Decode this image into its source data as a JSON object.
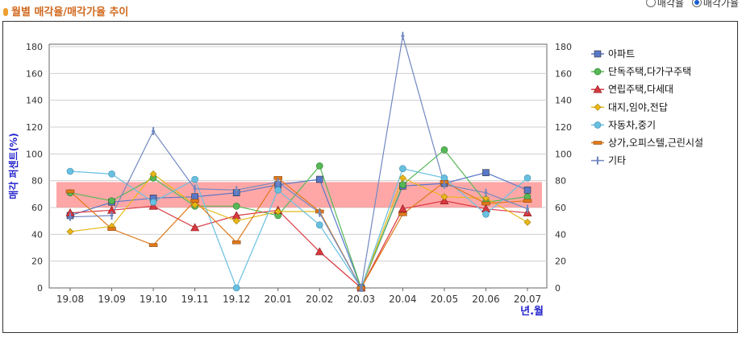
{
  "header": {
    "title": "월별 매각율/매각가율 추이"
  },
  "toggle": {
    "options": [
      "매각율",
      "매각가율"
    ],
    "selected": 1
  },
  "colors": {
    "band": "#ff8a8a",
    "grid": "#cfcfcf",
    "axis": "#666666",
    "ylabel": "#2222cc"
  },
  "chart_data": {
    "type": "line",
    "ylabel": "매각 퍼센트(%)",
    "xlabel": "년.월",
    "ylim": [
      0,
      180
    ],
    "yticks": [
      0,
      20,
      40,
      60,
      80,
      100,
      120,
      140,
      160,
      180
    ],
    "categories": [
      "19.08",
      "19.09",
      "19.10",
      "19.11",
      "19.12",
      "20.01",
      "20.02",
      "20.03",
      "20.04",
      "20.05",
      "20.06",
      "20.07"
    ],
    "band": [
      60,
      79
    ],
    "series": [
      {
        "name": "아파트",
        "color": "#5878c8",
        "marker": "square",
        "values": [
          54,
          64,
          67,
          68,
          71,
          77,
          81,
          0,
          76,
          78,
          86,
          73
        ]
      },
      {
        "name": "단독주택,다가구주택",
        "color": "#58b858",
        "marker": "circle",
        "values": [
          71,
          65,
          82,
          61,
          61,
          54,
          91,
          0,
          77,
          103,
          64,
          68
        ]
      },
      {
        "name": "연립주택,다세대",
        "color": "#d83840",
        "marker": "triangle",
        "values": [
          56,
          58,
          61,
          45,
          54,
          58,
          27,
          0,
          59,
          65,
          59,
          56
        ]
      },
      {
        "name": "대지,임야,전답",
        "color": "#e8b818",
        "marker": "diamond",
        "values": [
          42,
          46,
          85,
          62,
          50,
          57,
          57,
          0,
          82,
          68,
          67,
          49
        ]
      },
      {
        "name": "자동차,중기",
        "color": "#68c0e0",
        "marker": "ball",
        "values": [
          87,
          85,
          64,
          81,
          0,
          73,
          47,
          0,
          89,
          82,
          55,
          82
        ]
      },
      {
        "name": "상가,오피스텔,근린시설",
        "color": "#e07818",
        "marker": "dash",
        "values": [
          72,
          44,
          32,
          65,
          34,
          82,
          57,
          0,
          55,
          79,
          63,
          65
        ]
      },
      {
        "name": "기타",
        "color": "#7088c0",
        "marker": "plus",
        "values": [
          53,
          54,
          117,
          74,
          73,
          79,
          56,
          0,
          188,
          77,
          71,
          59
        ]
      }
    ]
  }
}
